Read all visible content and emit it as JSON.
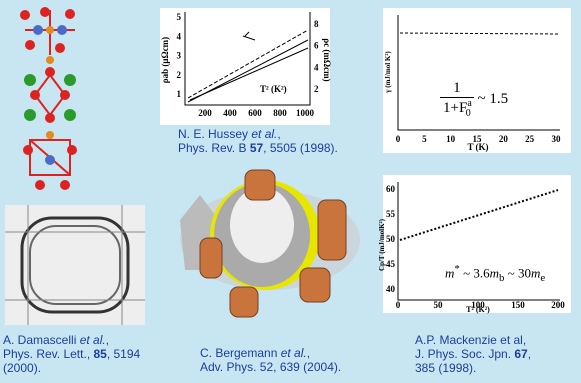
{
  "hussey": {
    "x_label": "T² (K²)",
    "y_label": "ρab (μΩcm)",
    "y2_label": "ρc (mΩcm)",
    "xticks": [
      "200",
      "400",
      "600",
      "800",
      "1000"
    ],
    "yticks": [
      "1",
      "2",
      "3",
      "4",
      "5"
    ],
    "y2ticks": [
      "2",
      "4",
      "6",
      "8"
    ],
    "caption": [
      "N. E. Hussey ",
      "et al.",
      ",",
      "Phys. Rev. B ",
      "57",
      ", 5505 (1998)."
    ]
  },
  "gamma": {
    "x_label": "T (K)",
    "y_label": "γ (mJ/mol K²)",
    "xticks": [
      "0",
      "5",
      "10",
      "15",
      "20",
      "25",
      "30"
    ],
    "formula": {
      "numerator": "1",
      "denominator": "1+F",
      "sub": "0",
      "sup": "a",
      "rest": "~ 1.5"
    }
  },
  "cp": {
    "x_label": "T² (K²)",
    "y_label": "Cp/T (mJ/molK²)",
    "xticks": [
      "0",
      "50",
      "100",
      "150",
      "200"
    ],
    "yticks": [
      "40",
      "45",
      "50",
      "55",
      "60"
    ],
    "formula": [
      "m",
      "*",
      " ~ 3.6",
      "m",
      "b",
      " ~ 30",
      "m",
      "e"
    ],
    "caption": [
      "A.P. Mackenzie et al,",
      "J. Phys. Soc. Jpn. ",
      "67",
      ",",
      "385 (1998)."
    ]
  },
  "damascelli": {
    "caption": [
      "A. Damascelli ",
      "et al.",
      ",",
      "Phys. Rev. Lett., ",
      "85",
      ", 5194",
      "(2000)."
    ]
  },
  "bergemann": {
    "caption": [
      "C. Bergemann ",
      "et al.",
      ",",
      "Adv. Phys. 52, 639 (2004)."
    ]
  }
}
